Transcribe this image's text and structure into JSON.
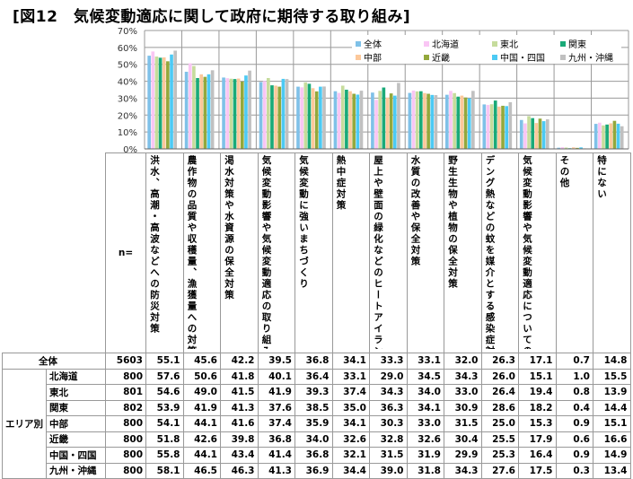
{
  "title": "[図12　気候変動適応に関して政府に期待する取り組み]",
  "chart_data": {
    "type": "bar",
    "ylim": [
      0,
      70
    ],
    "yticks": [
      "0%",
      "10%",
      "20%",
      "30%",
      "40%",
      "50%",
      "60%",
      "70%"
    ],
    "grid": true,
    "legend_position": "top-right",
    "categories": [
      "洪水、高潮・高波などへの防災対策",
      "農作物の品質や収穫量、漁獲量への対策",
      "渇水対策や水資源の保全対策",
      "気候変動影響や気候変動適応の取り組みについての情報提供",
      "気候変動に強いまちづくり",
      "熱中症対策",
      "屋上や壁面の緑化などのヒートアイランド対策",
      "水質の改善や保全対策",
      "野生生物や植物の保全対策",
      "デング熱などの蚊を媒介とする感染症対策",
      "気候変動影響や気候変動適応についてのセミナーやシンポジウムの開催による普及啓発",
      "その他",
      "特にない"
    ],
    "series": [
      {
        "name": "全体",
        "n": "5603",
        "color": "#7fc1e8",
        "values": [
          55.1,
          45.6,
          42.2,
          39.5,
          36.8,
          34.1,
          33.3,
          33.1,
          32.0,
          26.3,
          17.1,
          0.7,
          14.8
        ]
      },
      {
        "name": "北海道",
        "n": "800",
        "color": "#f9c6f4",
        "values": [
          57.6,
          50.6,
          41.8,
          40.1,
          36.4,
          33.1,
          29.0,
          34.5,
          34.3,
          26.0,
          15.1,
          1.0,
          15.5
        ]
      },
      {
        "name": "東北",
        "n": "801",
        "color": "#c6dc9c",
        "values": [
          54.6,
          49.0,
          41.5,
          41.9,
          39.3,
          37.4,
          34.3,
          34.0,
          33.0,
          26.4,
          19.4,
          0.8,
          13.9
        ]
      },
      {
        "name": "関東",
        "n": "802",
        "color": "#1aaa78",
        "values": [
          53.9,
          41.9,
          41.3,
          37.6,
          38.5,
          35.0,
          36.3,
          34.1,
          30.9,
          28.6,
          18.2,
          0.4,
          14.4
        ]
      },
      {
        "name": "中部",
        "n": "800",
        "color": "#fcc89a",
        "values": [
          54.1,
          44.1,
          41.6,
          37.4,
          35.9,
          34.1,
          30.3,
          33.0,
          31.5,
          25.0,
          15.3,
          0.9,
          15.1
        ]
      },
      {
        "name": "近畿",
        "n": "800",
        "color": "#93a83c",
        "values": [
          51.8,
          42.6,
          39.8,
          36.8,
          34.0,
          32.6,
          32.8,
          32.6,
          30.4,
          25.5,
          17.9,
          0.6,
          16.6
        ]
      },
      {
        "name": "中国・四国",
        "n": "800",
        "color": "#4ccaf4",
        "values": [
          55.8,
          44.1,
          43.4,
          41.4,
          36.8,
          32.1,
          31.5,
          31.9,
          29.9,
          25.3,
          16.4,
          0.9,
          14.9
        ]
      },
      {
        "name": "九州・沖縄",
        "n": "800",
        "color": "#c0c0c0",
        "values": [
          58.1,
          46.5,
          46.3,
          41.3,
          36.9,
          34.4,
          39.0,
          31.8,
          34.3,
          27.6,
          17.5,
          0.3,
          13.4
        ]
      }
    ]
  },
  "table": {
    "n_header": "n=",
    "total_label": "全体",
    "group_label": "エリア別"
  }
}
